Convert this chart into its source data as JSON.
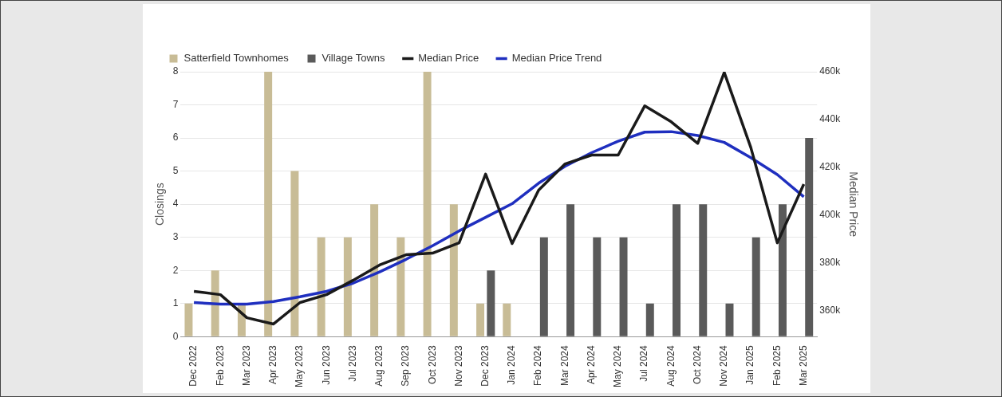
{
  "chart_data": {
    "type": "bar",
    "ylabel": "Closings",
    "y2label": "Median Price",
    "categories": [
      "Dec 2022",
      "Feb 2023",
      "Mar 2023",
      "Apr 2023",
      "May 2023",
      "Jun 2023",
      "Jul 2023",
      "Aug 2023",
      "Sep 2023",
      "Oct 2023",
      "Nov 2023",
      "Dec 2023",
      "Jan 2024",
      "Feb 2024",
      "Mar 2024",
      "Apr 2024",
      "May 2024",
      "Jul 2024",
      "Aug 2024",
      "Oct 2024",
      "Nov 2024",
      "Jan 2025",
      "Feb 2025",
      "Mar 2025"
    ],
    "series": [
      {
        "name": "Satterfield Townhomes",
        "color": "#c8bc96",
        "values": [
          1,
          2,
          1,
          8,
          5,
          3,
          3,
          4,
          3,
          8,
          4,
          1,
          1,
          null,
          null,
          null,
          null,
          null,
          null,
          null,
          null,
          null,
          null,
          null
        ]
      },
      {
        "name": "Village Towns",
        "color": "#5a5a5a",
        "values": [
          null,
          null,
          null,
          null,
          null,
          null,
          null,
          null,
          null,
          null,
          null,
          2,
          null,
          3,
          4,
          3,
          3,
          1,
          4,
          4,
          1,
          3,
          4,
          6
        ]
      },
      {
        "name": "Median Price",
        "type": "line",
        "axis": "y2",
        "color": "#1a1a1a",
        "values": [
          368000,
          366600,
          356900,
          354300,
          363300,
          366600,
          372600,
          379000,
          383300,
          384000,
          388300,
          417100,
          388000,
          410400,
          421400,
          425100,
          425100,
          445700,
          439000,
          430000,
          459700,
          428300,
          388300,
          412900
        ]
      },
      {
        "name": "Median Price Trend",
        "type": "line",
        "axis": "y2",
        "color": "#1f2fbf",
        "values": [
          363300,
          362600,
          362600,
          363700,
          365700,
          368000,
          371400,
          376100,
          381400,
          387100,
          393300,
          399000,
          404700,
          413300,
          420400,
          426100,
          430900,
          434700,
          434900,
          433300,
          430400,
          424000,
          416900,
          407600
        ]
      }
    ],
    "ylim": [
      0,
      8
    ],
    "yticks": [
      0,
      1,
      2,
      3,
      4,
      5,
      6,
      7,
      8
    ],
    "y2lim": [
      349000,
      460000
    ],
    "y2ticks": [
      {
        "value": 360000,
        "label": "360k"
      },
      {
        "value": 380000,
        "label": "380k"
      },
      {
        "value": 400000,
        "label": "400k"
      },
      {
        "value": 420000,
        "label": "420k"
      },
      {
        "value": 440000,
        "label": "440k"
      },
      {
        "value": 460000,
        "label": "460k"
      }
    ],
    "grid": "y",
    "legend": "top left",
    "marker": "none",
    "line_style": "solid"
  }
}
